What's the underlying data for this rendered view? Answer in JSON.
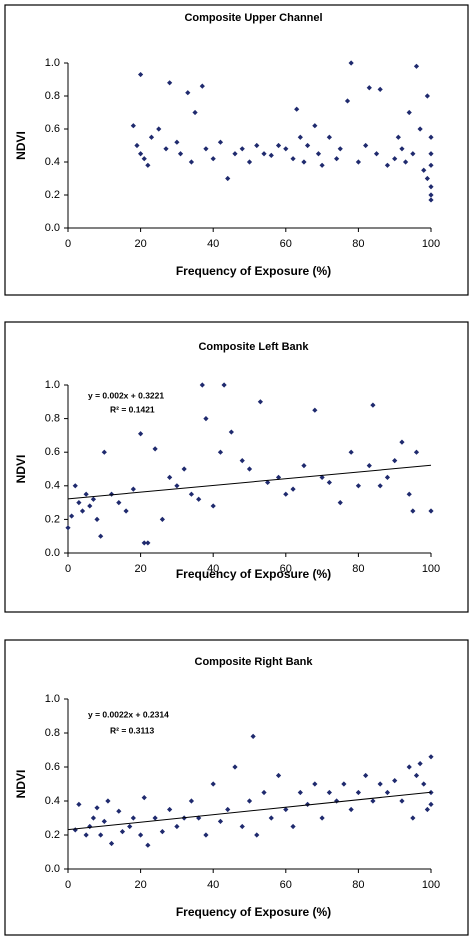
{
  "chart_data": [
    {
      "type": "scatter",
      "title": "Composite Upper Channel",
      "x_label": "Frequency of Exposure (%)",
      "y_label": "NDVI",
      "color": "#1f2a6e",
      "xlim": [
        0,
        100
      ],
      "xticks": [
        0,
        20,
        40,
        60,
        80,
        100
      ],
      "ylim": [
        0,
        1
      ],
      "yticks": [
        {
          "value": 0,
          "label": "0.0"
        },
        {
          "value": 0.2,
          "label": "0.2"
        },
        {
          "value": 0.4,
          "label": "0.4"
        },
        {
          "value": 0.6,
          "label": "0.6"
        },
        {
          "value": 0.8,
          "label": "0.8"
        },
        {
          "value": 1,
          "label": "1.0"
        }
      ],
      "x": [
        18,
        19,
        20,
        20,
        21,
        22,
        23,
        25,
        27,
        28,
        30,
        31,
        33,
        34,
        35,
        37,
        38,
        40,
        42,
        44,
        46,
        48,
        50,
        52,
        54,
        56,
        58,
        60,
        62,
        63,
        64,
        65,
        66,
        68,
        69,
        70,
        72,
        74,
        75,
        77,
        78,
        80,
        82,
        83,
        85,
        86,
        88,
        90,
        91,
        92,
        93,
        94,
        95,
        96,
        97,
        98,
        99,
        99,
        100,
        100,
        100,
        100,
        100,
        100
      ],
      "values": [
        0.62,
        0.5,
        0.93,
        0.45,
        0.42,
        0.38,
        0.55,
        0.6,
        0.48,
        0.88,
        0.52,
        0.45,
        0.82,
        0.4,
        0.7,
        0.86,
        0.48,
        0.42,
        0.52,
        0.3,
        0.45,
        0.48,
        0.4,
        0.5,
        0.45,
        0.44,
        0.5,
        0.48,
        0.42,
        0.72,
        0.55,
        0.4,
        0.5,
        0.62,
        0.45,
        0.38,
        0.55,
        0.42,
        0.48,
        0.77,
        1.0,
        0.4,
        0.5,
        0.85,
        0.45,
        0.84,
        0.38,
        0.42,
        0.55,
        0.48,
        0.4,
        0.7,
        0.45,
        0.98,
        0.6,
        0.35,
        0.8,
        0.3,
        0.25,
        0.45,
        0.55,
        0.38,
        0.17,
        0.2
      ]
    },
    {
      "type": "scatter",
      "title": "Composite Left Bank",
      "x_label": "Frequency of Exposure (%)",
      "y_label": "NDVI",
      "color": "#1f2a6e",
      "annotations": [
        "y = 0.002x + 0.3221",
        "R² = 0.1421"
      ],
      "trendline": {
        "slope": 0.002,
        "intercept": 0.3221
      },
      "xlim": [
        0,
        100
      ],
      "xticks": [
        0,
        20,
        40,
        60,
        80,
        100
      ],
      "ylim": [
        0,
        1
      ],
      "yticks": [
        {
          "value": 0,
          "label": "0.0"
        },
        {
          "value": 0.2,
          "label": "0.2"
        },
        {
          "value": 0.4,
          "label": "0.4"
        },
        {
          "value": 0.6,
          "label": "0.6"
        },
        {
          "value": 0.8,
          "label": "0.8"
        },
        {
          "value": 1,
          "label": "1.0"
        }
      ],
      "x": [
        0,
        1,
        2,
        3,
        4,
        5,
        6,
        7,
        8,
        9,
        10,
        12,
        14,
        16,
        18,
        20,
        21,
        22,
        24,
        26,
        28,
        30,
        32,
        34,
        36,
        37,
        38,
        40,
        42,
        43,
        45,
        48,
        50,
        53,
        55,
        58,
        60,
        62,
        65,
        68,
        70,
        72,
        75,
        78,
        80,
        83,
        84,
        86,
        88,
        90,
        92,
        94,
        95,
        96,
        100
      ],
      "values": [
        0.15,
        0.22,
        0.4,
        0.3,
        0.25,
        0.35,
        0.28,
        0.32,
        0.2,
        0.1,
        0.6,
        0.35,
        0.3,
        0.25,
        0.38,
        0.71,
        0.06,
        0.06,
        0.62,
        0.2,
        0.45,
        0.4,
        0.5,
        0.35,
        0.32,
        1.0,
        0.8,
        0.28,
        0.6,
        1.0,
        0.72,
        0.55,
        0.5,
        0.9,
        0.42,
        0.45,
        0.35,
        0.38,
        0.52,
        0.85,
        0.45,
        0.42,
        0.3,
        0.6,
        0.4,
        0.52,
        0.88,
        0.4,
        0.45,
        0.55,
        0.66,
        0.35,
        0.25,
        0.6,
        0.25
      ]
    },
    {
      "type": "scatter",
      "title": "Composite Right Bank",
      "x_label": "Frequency of Exposure (%)",
      "y_label": "NDVI",
      "color": "#1f2a6e",
      "annotations": [
        "y = 0.0022x + 0.2314",
        "R² = 0.3113"
      ],
      "trendline": {
        "slope": 0.0022,
        "intercept": 0.2314
      },
      "xlim": [
        0,
        100
      ],
      "xticks": [
        0,
        20,
        40,
        60,
        80,
        100
      ],
      "ylim": [
        0,
        1
      ],
      "yticks": [
        {
          "value": 0,
          "label": "0.0"
        },
        {
          "value": 0.2,
          "label": "0.2"
        },
        {
          "value": 0.4,
          "label": "0.4"
        },
        {
          "value": 0.6,
          "label": "0.6"
        },
        {
          "value": 0.8,
          "label": "0.8"
        },
        {
          "value": 1,
          "label": "1.0"
        }
      ],
      "x": [
        2,
        3,
        5,
        6,
        7,
        8,
        9,
        10,
        11,
        12,
        14,
        15,
        17,
        18,
        20,
        21,
        22,
        24,
        26,
        28,
        30,
        32,
        34,
        36,
        38,
        40,
        42,
        44,
        46,
        48,
        50,
        51,
        52,
        54,
        56,
        58,
        60,
        62,
        64,
        66,
        68,
        70,
        72,
        74,
        76,
        78,
        80,
        82,
        84,
        86,
        88,
        90,
        92,
        94,
        95,
        96,
        97,
        98,
        99,
        100,
        100,
        100
      ],
      "values": [
        0.23,
        0.38,
        0.2,
        0.25,
        0.3,
        0.36,
        0.2,
        0.28,
        0.4,
        0.15,
        0.34,
        0.22,
        0.25,
        0.3,
        0.2,
        0.42,
        0.14,
        0.3,
        0.22,
        0.35,
        0.25,
        0.3,
        0.4,
        0.3,
        0.2,
        0.5,
        0.28,
        0.35,
        0.6,
        0.25,
        0.4,
        0.78,
        0.2,
        0.45,
        0.3,
        0.55,
        0.35,
        0.25,
        0.45,
        0.38,
        0.5,
        0.3,
        0.45,
        0.4,
        0.5,
        0.35,
        0.45,
        0.55,
        0.4,
        0.5,
        0.45,
        0.52,
        0.4,
        0.6,
        0.3,
        0.55,
        0.62,
        0.5,
        0.35,
        0.45,
        0.66,
        0.38
      ]
    }
  ]
}
